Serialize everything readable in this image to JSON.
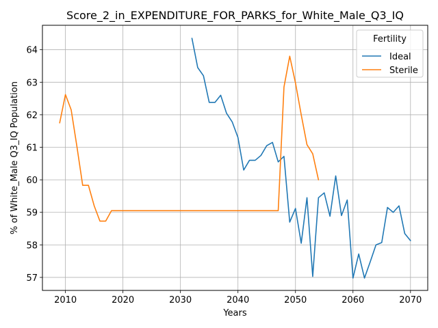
{
  "chart_data": {
    "type": "line",
    "title": "Score_2_in_EXPENDITURE_FOR_PARKS_for_White_Male_Q3_IQ",
    "xlabel": "Years",
    "ylabel": "% of White_Male Q3_IQ Population",
    "xlim": [
      2006,
      2073
    ],
    "ylim": [
      56.6,
      64.75
    ],
    "xticks": [
      2010,
      2020,
      2030,
      2040,
      2050,
      2060,
      2070
    ],
    "yticks": [
      57,
      58,
      59,
      60,
      61,
      62,
      63,
      64
    ],
    "grid": true,
    "legend": {
      "title": "Fertility",
      "position": "top-right"
    },
    "series": [
      {
        "name": "Ideal",
        "color": "#1f77b4",
        "x": [
          2032,
          2033,
          2034,
          2035,
          2036,
          2037,
          2038,
          2039,
          2040,
          2041,
          2042,
          2043,
          2044,
          2045,
          2046,
          2047,
          2048,
          2049,
          2050,
          2051,
          2052,
          2053,
          2054,
          2055,
          2056,
          2057,
          2058,
          2059,
          2060,
          2061,
          2062,
          2063,
          2064,
          2065,
          2066,
          2067,
          2068,
          2069,
          2070
        ],
        "values": [
          64.35,
          63.45,
          63.2,
          62.38,
          62.38,
          62.6,
          62.05,
          61.78,
          61.3,
          60.3,
          60.6,
          60.6,
          60.75,
          61.05,
          61.15,
          60.55,
          60.72,
          58.7,
          59.12,
          58.05,
          59.45,
          57.03,
          59.45,
          59.6,
          58.88,
          60.12,
          58.9,
          59.38,
          56.98,
          57.72,
          56.98,
          57.48,
          58.0,
          58.07,
          59.15,
          59.0,
          59.2,
          58.35,
          58.13
        ]
      },
      {
        "name": "Sterile",
        "color": "#ff7f0e",
        "x": [
          2009,
          2010,
          2011,
          2012,
          2013,
          2014,
          2015,
          2016,
          2017,
          2018,
          2019,
          2020,
          2021,
          2022,
          2023,
          2024,
          2025,
          2026,
          2027,
          2028,
          2029,
          2030,
          2031,
          2032,
          2033,
          2034,
          2035,
          2036,
          2037,
          2038,
          2039,
          2040,
          2041,
          2042,
          2043,
          2044,
          2045,
          2046,
          2047,
          2048,
          2049,
          2050,
          2051,
          2052,
          2053,
          2054
        ],
        "values": [
          61.75,
          62.62,
          62.15,
          61.02,
          59.83,
          59.83,
          59.2,
          58.73,
          58.73,
          59.05,
          59.05,
          59.05,
          59.05,
          59.05,
          59.05,
          59.05,
          59.05,
          59.05,
          59.05,
          59.05,
          59.05,
          59.05,
          59.05,
          59.05,
          59.05,
          59.05,
          59.05,
          59.05,
          59.05,
          59.05,
          59.05,
          59.05,
          59.05,
          59.05,
          59.05,
          59.05,
          59.05,
          59.05,
          59.05,
          62.85,
          63.8,
          62.98,
          62.0,
          61.08,
          60.8,
          60.0
        ]
      }
    ]
  }
}
